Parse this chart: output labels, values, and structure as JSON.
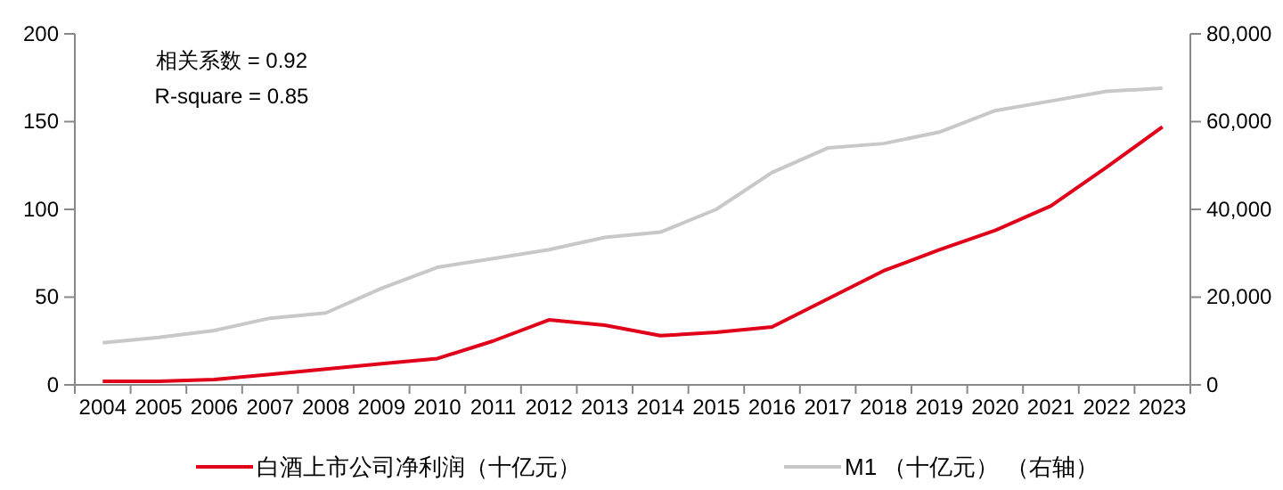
{
  "chart_data": {
    "type": "line",
    "categories": [
      "2004",
      "2005",
      "2006",
      "2007",
      "2008",
      "2009",
      "2010",
      "2011",
      "2012",
      "2013",
      "2014",
      "2015",
      "2016",
      "2017",
      "2018",
      "2019",
      "2020",
      "2021",
      "2022",
      "2023"
    ],
    "series": [
      {
        "name": "白酒上市公司净利润（十亿元）",
        "color": "#e00019",
        "values": [
          2,
          2,
          3,
          6,
          9,
          12,
          15,
          25,
          37,
          34,
          28,
          30,
          33,
          49,
          65,
          77,
          88,
          102,
          124,
          147
        ]
      },
      {
        "name": "M1 （十亿元） （右轴）",
        "color": "#c8c8c8",
        "axis": "y2",
        "values": [
          9600,
          10800,
          12400,
          15200,
          16400,
          22000,
          26800,
          28800,
          30800,
          33600,
          34800,
          40000,
          48400,
          54000,
          55000,
          57600,
          62500,
          64700,
          66900,
          67600
        ]
      }
    ],
    "ylim": [
      0,
      200
    ],
    "yticks": [
      0,
      50,
      100,
      150,
      200
    ],
    "y2lim": [
      0,
      80000
    ],
    "y2ticks": [
      {
        "value": 0,
        "label": "0"
      },
      {
        "value": 20000,
        "label": "20,000"
      },
      {
        "value": 40000,
        "label": "40,000"
      },
      {
        "value": 60000,
        "label": "60,000"
      },
      {
        "value": 80000,
        "label": "80,000"
      }
    ],
    "annotations": [
      "相关系数 = 0.92",
      "R-square = 0.85"
    ],
    "legend": "bottom",
    "grid": false
  }
}
